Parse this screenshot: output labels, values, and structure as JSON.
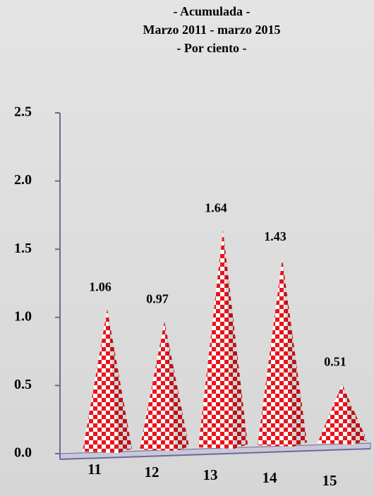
{
  "chart_data": {
    "type": "pyramid",
    "title": "- Acumulada -",
    "subtitle": "Marzo 2011 - marzo 2015",
    "unit_label": "- Por ciento -",
    "categories": [
      "11",
      "12",
      "13",
      "14",
      "15"
    ],
    "values": [
      1.06,
      0.97,
      1.64,
      1.43,
      0.51
    ],
    "value_labels": [
      "1.06",
      "0.97",
      "1.64",
      "1.43",
      "0.51"
    ],
    "color": "#e8141c",
    "ylim": [
      0,
      2.5
    ],
    "yticks": [
      {
        "value": 0,
        "label": "0.0"
      },
      0.5,
      {
        "value": 1,
        "label": "1.0"
      },
      1.5,
      {
        "value": 2,
        "label": "2.0"
      },
      2.5
    ]
  }
}
